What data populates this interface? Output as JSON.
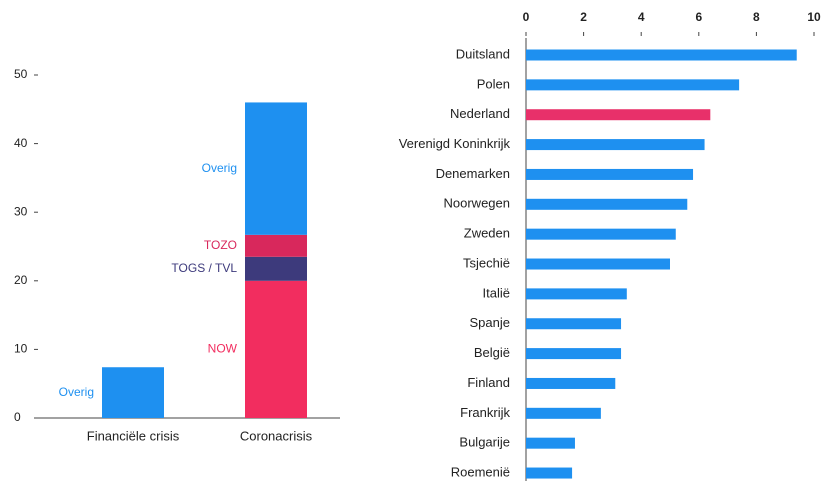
{
  "chart_data": [
    {
      "type": "stacked-bar",
      "categories": [
        "Financiële crisis",
        "Coronacrisis"
      ],
      "series": [
        {
          "name": "NOW",
          "color": "#f22d5f",
          "values": [
            0,
            20
          ]
        },
        {
          "name": "TOGS / TVL",
          "color": "#3d3a7c",
          "values": [
            0,
            3.5
          ]
        },
        {
          "name": "TOZO",
          "color": "#d8285c",
          "values": [
            0,
            3.2
          ]
        },
        {
          "name": "Overig",
          "color": "#1e90f0",
          "values": [
            7.4,
            19.3
          ]
        }
      ],
      "ylim": [
        0,
        50
      ],
      "yticks": [
        0,
        10,
        20,
        30,
        40,
        50
      ]
    },
    {
      "type": "hbar",
      "categories": [
        "Duitsland",
        "Polen",
        "Nederland",
        "Verenigd Koninkrijk",
        "Denemarken",
        "Noorwegen",
        "Zweden",
        "Tsjechië",
        "Italië",
        "Spanje",
        "België",
        "Finland",
        "Frankrijk",
        "Bulgarije",
        "Roemenië"
      ],
      "values": [
        9.4,
        7.4,
        6.4,
        6.2,
        5.8,
        5.6,
        5.2,
        5.0,
        3.5,
        3.3,
        3.3,
        3.1,
        2.6,
        1.7,
        1.6
      ],
      "colors": [
        "#1e90f0",
        "#1e90f0",
        "#e8306a",
        "#1e90f0",
        "#1e90f0",
        "#1e90f0",
        "#1e90f0",
        "#1e90f0",
        "#1e90f0",
        "#1e90f0",
        "#1e90f0",
        "#1e90f0",
        "#1e90f0",
        "#1e90f0",
        "#1e90f0"
      ],
      "xlim": [
        0,
        10
      ],
      "xticks": [
        0,
        2,
        4,
        6,
        8,
        10
      ]
    }
  ]
}
